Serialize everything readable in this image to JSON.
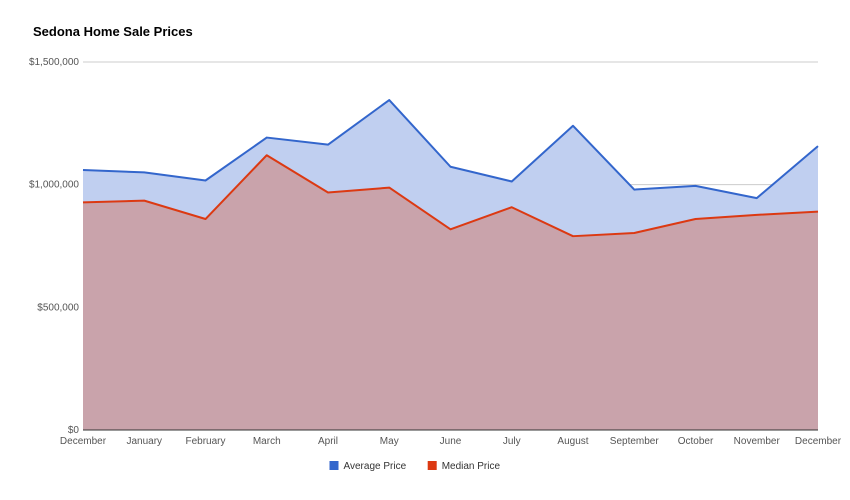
{
  "chart_data": {
    "type": "area",
    "title": "Sedona Home Sale Prices",
    "xlabel": "",
    "ylabel": "",
    "categories": [
      "December",
      "January",
      "February",
      "March",
      "April",
      "May",
      "June",
      "July",
      "August",
      "September",
      "October",
      "November",
      "December"
    ],
    "series": [
      {
        "name": "Average Price",
        "color": "#3366cc",
        "fill": "#c0cff0",
        "values": [
          1060000,
          1050000,
          1017000,
          1192000,
          1163000,
          1345000,
          1073000,
          1013000,
          1240000,
          980000,
          995000,
          945000,
          1157000
        ]
      },
      {
        "name": "Median Price",
        "color": "#dc3912",
        "fill": "#c9a3ab",
        "values": [
          928000,
          935000,
          860000,
          1120000,
          968000,
          988000,
          818000,
          908000,
          790000,
          803000,
          860000,
          877000,
          890000
        ]
      }
    ],
    "ylim": [
      0,
      1500000
    ],
    "yticks": [
      0,
      500000,
      1000000,
      1500000
    ],
    "ytick_labels": [
      "$0",
      "$500,000",
      "$1,000,000",
      "$1,500,000"
    ],
    "grid": true,
    "legend_position": "bottom"
  }
}
